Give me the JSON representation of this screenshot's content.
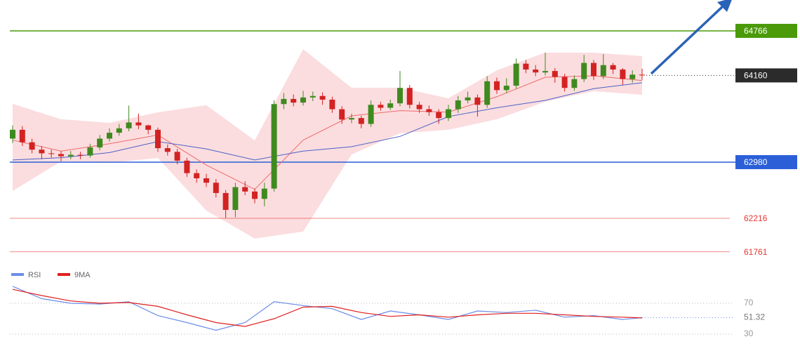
{
  "chart_data": [
    {
      "type": "candlestick",
      "open": [
        63300,
        63420,
        63250,
        63150,
        63100,
        63090,
        63060,
        63080,
        63070,
        63180,
        63300,
        63380,
        63440,
        63520,
        63480,
        63420,
        63170,
        63120,
        63000,
        62830,
        62760,
        62700,
        62560,
        62330,
        62640,
        62580,
        62480,
        62620,
        63770,
        63840,
        63790,
        63860,
        63880,
        63830,
        63700,
        63560,
        63580,
        63500,
        63760,
        63720,
        63780,
        63990,
        63760,
        63700,
        63660,
        63580,
        63700,
        63820,
        63860,
        63760,
        64080,
        63960,
        64020,
        64320,
        64240,
        64200,
        64220,
        64140,
        63990,
        64110,
        64330,
        64150,
        64300,
        64240,
        64110,
        64170
      ],
      "high": [
        63480,
        63470,
        63300,
        63200,
        63150,
        63130,
        63130,
        63120,
        63230,
        63350,
        63440,
        63500,
        63750,
        63640,
        63490,
        63450,
        63220,
        63160,
        63040,
        62880,
        62820,
        62750,
        62600,
        62700,
        62720,
        62620,
        62700,
        63820,
        63920,
        63900,
        63950,
        63940,
        63930,
        63870,
        63740,
        63640,
        63610,
        63820,
        63800,
        63830,
        64220,
        64030,
        63800,
        63750,
        63700,
        63760,
        63880,
        63940,
        63900,
        64150,
        64130,
        64120,
        64390,
        64370,
        64300,
        64470,
        64260,
        64180,
        64160,
        64440,
        64370,
        64450,
        64330,
        64260,
        64230,
        64250
      ],
      "low": [
        63240,
        63200,
        63100,
        63020,
        63040,
        62990,
        63020,
        63020,
        63040,
        63140,
        63260,
        63340,
        63400,
        63430,
        63360,
        63120,
        63070,
        62950,
        62780,
        62700,
        62640,
        62500,
        62220,
        62230,
        62530,
        62420,
        62380,
        62580,
        63700,
        63740,
        63750,
        63810,
        63760,
        63650,
        63500,
        63510,
        63440,
        63460,
        63680,
        63690,
        63740,
        63710,
        63650,
        63610,
        63500,
        63540,
        63650,
        63780,
        63600,
        63720,
        63910,
        63920,
        63980,
        64190,
        64150,
        64160,
        64060,
        63940,
        63950,
        64070,
        64100,
        64110,
        64180,
        64030,
        64060,
        64100
      ],
      "close": [
        63420,
        63250,
        63150,
        63100,
        63090,
        63060,
        63080,
        63070,
        63180,
        63300,
        63380,
        63440,
        63520,
        63480,
        63420,
        63170,
        63120,
        63000,
        62830,
        62760,
        62700,
        62560,
        62330,
        62640,
        62580,
        62480,
        62620,
        63770,
        63840,
        63790,
        63860,
        63880,
        63830,
        63700,
        63560,
        63580,
        63500,
        63760,
        63720,
        63780,
        63990,
        63760,
        63700,
        63660,
        63580,
        63700,
        63820,
        63860,
        63760,
        64080,
        63960,
        64020,
        64320,
        64240,
        64200,
        64220,
        64140,
        63990,
        64110,
        64330,
        64150,
        64300,
        64240,
        64110,
        64170,
        64160
      ],
      "up_color": "#3f8a1f",
      "down_color": "#d32222",
      "indicator_x": [
        0,
        5,
        10,
        15,
        20,
        25,
        30,
        35,
        40,
        45,
        50,
        55,
        60,
        65
      ],
      "band_upper": [
        63773,
        63563,
        63515,
        63658,
        63754,
        63276,
        64518,
        63992,
        63992,
        63849,
        64230,
        64470,
        64470,
        64423
      ],
      "band_lower": [
        62588,
        62990,
        62970,
        63037,
        62320,
        61940,
        62035,
        63085,
        63372,
        63420,
        63563,
        63802,
        63945,
        63897
      ],
      "band_color": "#f9d2d4",
      "moving_averages": [
        {
          "color": "#ef6a6a",
          "values": [
            63280,
            63130,
            63230,
            63350,
            62940,
            62610,
            63280,
            63610,
            63680,
            63660,
            63870,
            64135,
            64155,
            64090
          ]
        },
        {
          "color": "#4a62c8",
          "values": [
            63010,
            63040,
            63110,
            63260,
            63160,
            63010,
            63130,
            63190,
            63330,
            63600,
            63720,
            63820,
            63980,
            64060
          ]
        }
      ],
      "levels": [
        {
          "value": 64766,
          "color": "#4a9a0a",
          "style": "box"
        },
        {
          "value": 62980,
          "color": "#2a5fd8",
          "style": "box"
        },
        {
          "value": 62216,
          "color": "#e53935",
          "style": "text"
        },
        {
          "value": 61761,
          "color": "#e53935",
          "style": "text"
        }
      ],
      "last_color": "#2b2b2b",
      "ylim": [
        61652,
        65186
      ]
    },
    {
      "type": "line",
      "x": [
        0,
        3,
        6,
        9,
        12,
        15,
        18,
        21,
        24,
        27,
        30,
        33,
        36,
        39,
        42,
        45,
        48,
        51,
        54,
        57,
        60,
        63,
        65
      ],
      "series": [
        {
          "name": "RSI",
          "color": "#6b8de8",
          "values": [
            92,
            76,
            70,
            69,
            72,
            54,
            45,
            35,
            45,
            72,
            67,
            63,
            49,
            60,
            55,
            49,
            60,
            58,
            61,
            52,
            54,
            49,
            51.32
          ]
        },
        {
          "name": "9MA",
          "color": "#e02020",
          "values": [
            88,
            80,
            73,
            70,
            71,
            66,
            55,
            45,
            40,
            50,
            65,
            66,
            58,
            53,
            55,
            52,
            55,
            57,
            57,
            55,
            53,
            52,
            51
          ]
        }
      ],
      "ylim": [
        10,
        100
      ],
      "yticks": [
        30,
        70
      ]
    }
  ]
}
